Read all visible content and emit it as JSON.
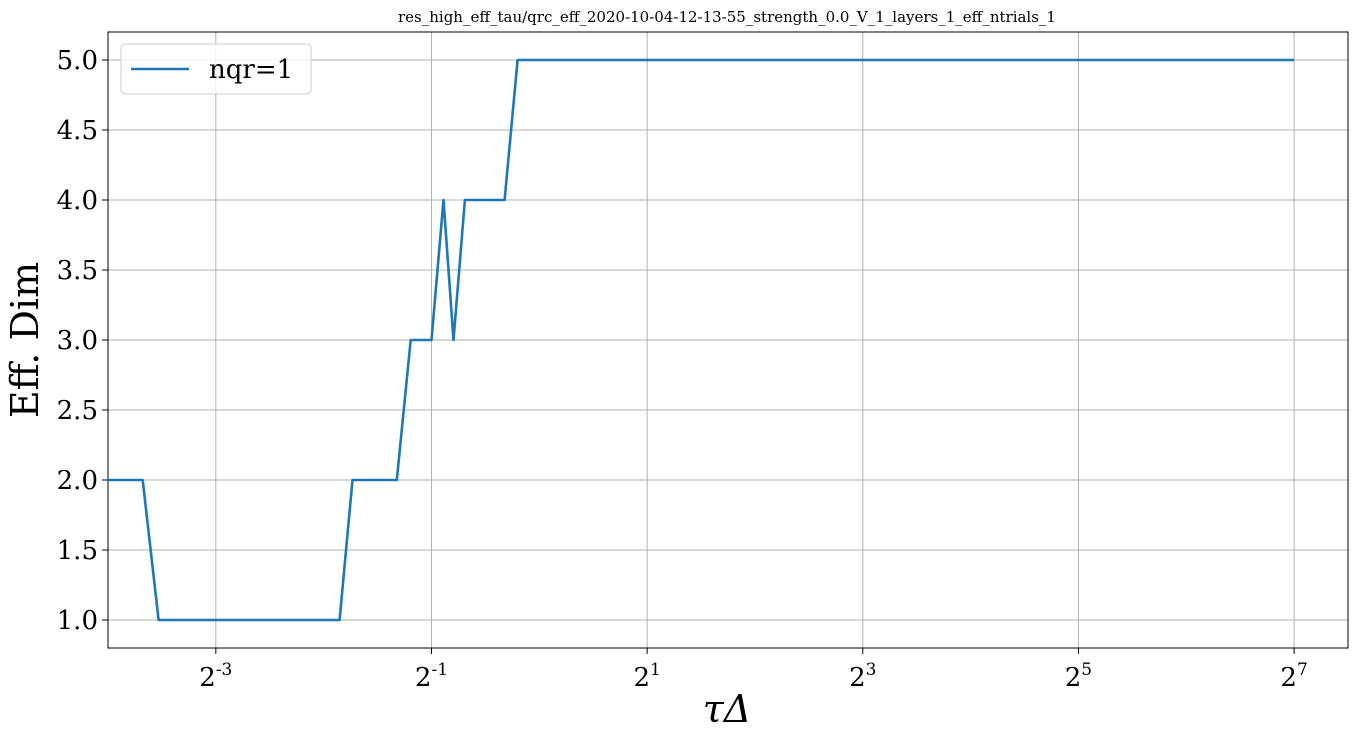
{
  "chart_data": {
    "type": "line",
    "title": "res_high_eff_tau/qrc_eff_2020-10-04-12-13-55_strength_0.0_V_1_layers_1_eff_ntrials_1",
    "xlabel": "τΔ",
    "ylabel": "Eff. Dim",
    "x_scale": "log2",
    "xlim": [
      0.0625,
      181.0
    ],
    "ylim": [
      0.8,
      5.2
    ],
    "x_ticks": [
      {
        "value": 0.125,
        "base": "2",
        "exp": "-3"
      },
      {
        "value": 0.5,
        "base": "2",
        "exp": "-1"
      },
      {
        "value": 2,
        "base": "2",
        "exp": "1"
      },
      {
        "value": 8,
        "base": "2",
        "exp": "3"
      },
      {
        "value": 32,
        "base": "2",
        "exp": "5"
      },
      {
        "value": 128,
        "base": "2",
        "exp": "7"
      }
    ],
    "y_ticks": [
      {
        "value": 1.0,
        "label": "1.0"
      },
      {
        "value": 1.5,
        "label": "1.5"
      },
      {
        "value": 2.0,
        "label": "2.0"
      },
      {
        "value": 2.5,
        "label": "2.5"
      },
      {
        "value": 3.0,
        "label": "3.0"
      },
      {
        "value": 3.5,
        "label": "3.5"
      },
      {
        "value": 4.0,
        "label": "4.0"
      },
      {
        "value": 4.5,
        "label": "4.5"
      },
      {
        "value": 5.0,
        "label": "5.0"
      }
    ],
    "grid": true,
    "legend_position": "top-left",
    "series": [
      {
        "name": "nqr=1",
        "color": "#1f77b4",
        "x": [
          0.0625,
          0.0781,
          0.0865,
          0.2,
          0.277,
          0.301,
          0.4,
          0.4375,
          0.5,
          0.54,
          0.576,
          0.62,
          0.8,
          0.87,
          128
        ],
        "y": [
          2.0,
          2.0,
          1.0,
          1.0,
          1.0,
          2.0,
          2.0,
          3.0,
          3.0,
          4.0,
          3.0,
          4.0,
          4.0,
          5.0,
          5.0
        ]
      }
    ]
  }
}
